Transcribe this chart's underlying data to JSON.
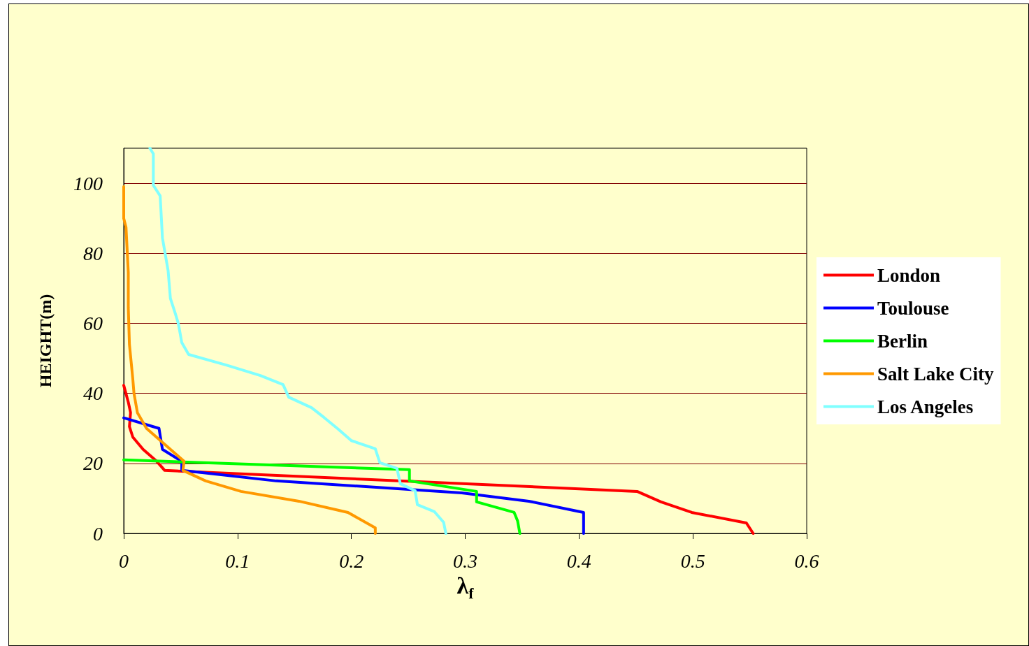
{
  "chart_data": {
    "type": "line",
    "xlabel": "λ$_{f}$",
    "ylabel": "HEIGHT(m)",
    "xlim": [
      0,
      0.6
    ],
    "xticks": [
      0,
      0.1,
      0.2,
      0.3,
      0.4,
      0.5,
      0.6
    ],
    "ylim": [
      0,
      110
    ],
    "yticks": [
      0,
      20,
      40,
      60,
      80,
      100
    ],
    "grid": "y",
    "legend": "right",
    "marker": "none",
    "line_style": "solid",
    "series": [
      {
        "name": "London",
        "color": "#ff0000",
        "x": [
          0.553,
          0.547,
          0.499,
          0.472,
          0.451,
          0.036,
          0.029,
          0.017,
          0.008,
          0.005,
          0.006,
          0.004,
          0
        ],
        "values": [
          0,
          3,
          6,
          9,
          12,
          18,
          20.6,
          24,
          27.5,
          30.5,
          34.5,
          37.5,
          42.3
        ]
      },
      {
        "name": "Toulouse",
        "color": "#0000ff",
        "x": [
          0.404,
          0.404,
          0.356,
          0.297,
          0.134,
          0.051,
          0.051,
          0.034,
          0.031,
          0
        ],
        "values": [
          0,
          6,
          9.2,
          11.6,
          15,
          18,
          20.6,
          24,
          30,
          33
        ]
      },
      {
        "name": "Berlin",
        "color": "#00ff00",
        "x": [
          0.348,
          0.346,
          0.343,
          0.31,
          0.31,
          0.251,
          0.251,
          0
        ],
        "values": [
          0,
          3.6,
          6,
          9,
          12,
          15,
          18.2,
          21
        ]
      },
      {
        "name": "Salt Lake City",
        "color": "#ff9900",
        "x": [
          0.221,
          0.221,
          0.197,
          0.154,
          0.103,
          0.072,
          0.052,
          0.053,
          0.02,
          0.012,
          0.009,
          0.008,
          0.005,
          0.004,
          0.004,
          0.002,
          0,
          0
        ],
        "values": [
          0,
          1.6,
          6,
          9.2,
          12,
          15,
          18,
          20.6,
          30,
          34.5,
          40,
          44,
          54,
          64.5,
          74.5,
          87.4,
          90,
          99
        ]
      },
      {
        "name": "Los Angeles",
        "color": "#80ffff",
        "x": [
          0.283,
          0.281,
          0.273,
          0.258,
          0.256,
          0.243,
          0.24,
          0.225,
          0.221,
          0.2,
          0.188,
          0.176,
          0.165,
          0.145,
          0.14,
          0.12,
          0.09,
          0.057,
          0.051,
          0.048,
          0.045,
          0.041,
          0.039,
          0.034,
          0.032,
          0.026,
          0.026,
          0.023
        ],
        "values": [
          0,
          3.2,
          6.2,
          8.2,
          12.2,
          14.2,
          18.6,
          20.2,
          24.2,
          26.5,
          29.9,
          33.1,
          35.9,
          38.9,
          42.5,
          45.1,
          48.1,
          51.1,
          54.5,
          59.9,
          63.1,
          67.1,
          75,
          84.4,
          96.4,
          99.4,
          108.4,
          110
        ]
      }
    ]
  }
}
